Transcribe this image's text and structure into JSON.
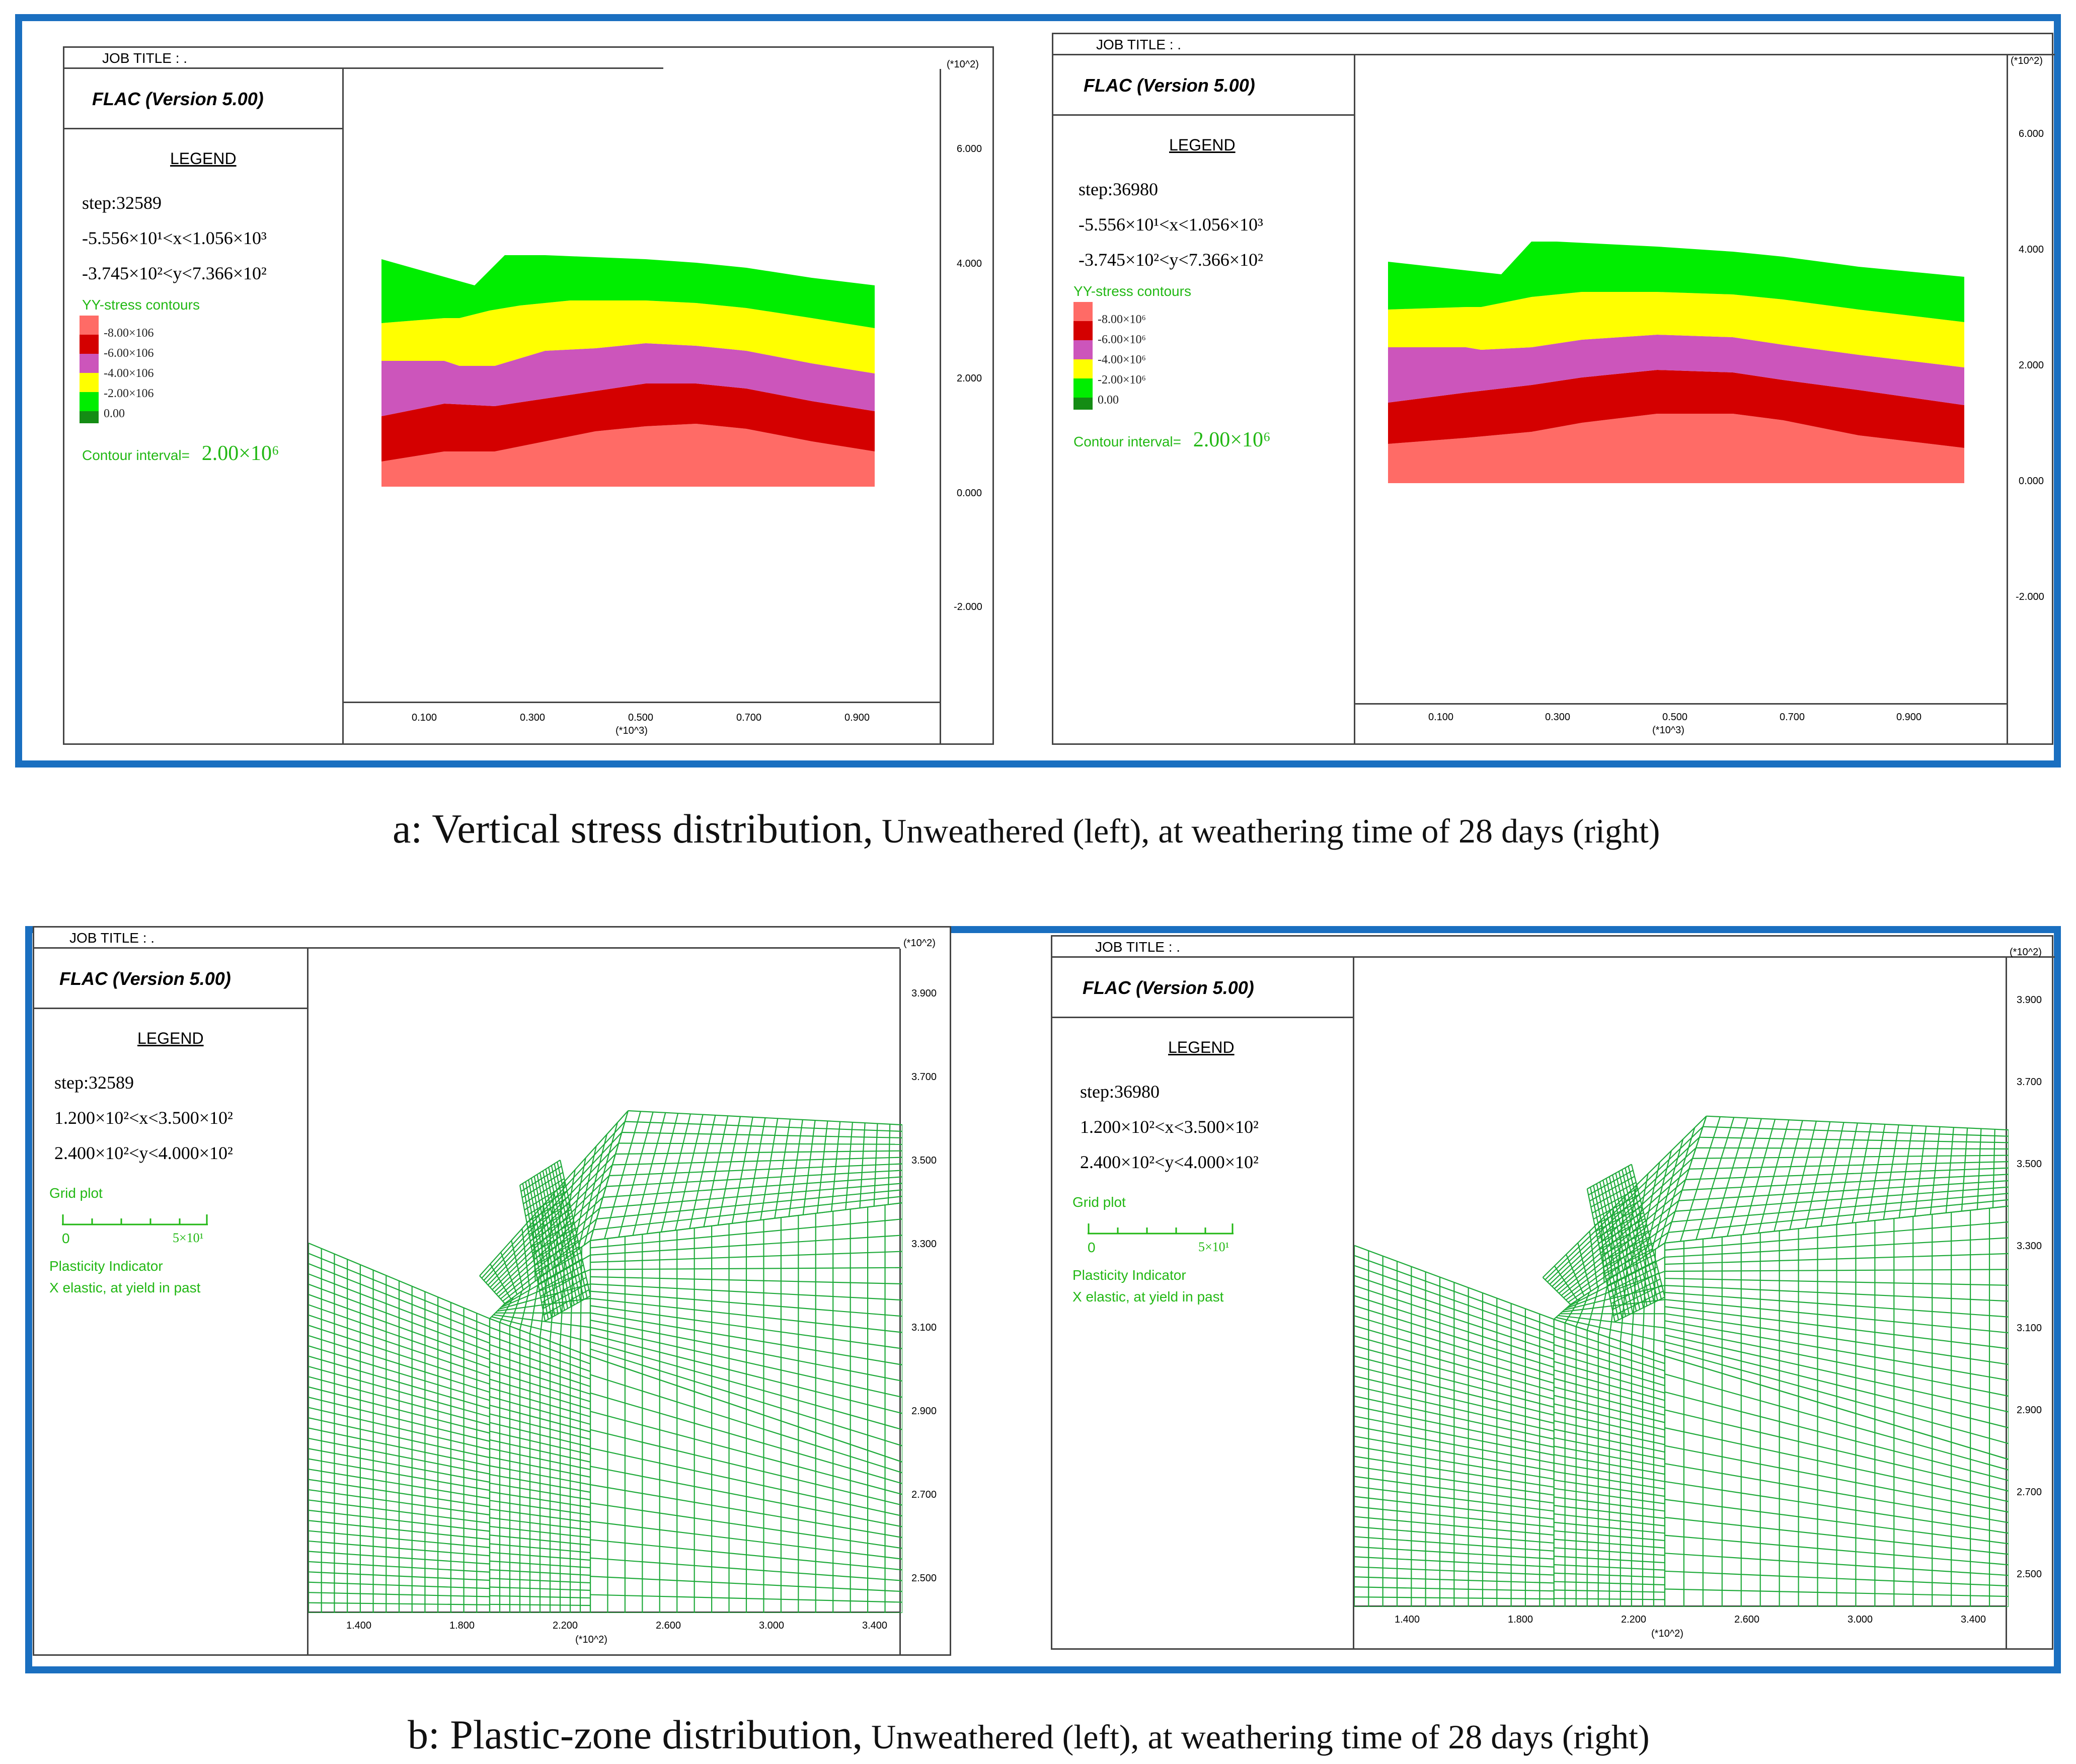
{
  "figure_a": {
    "caption_main": "a: Vertical stress distribution,",
    "caption_sub": " Unweathered (left), at weathering time of 28 days (right)",
    "panels": [
      {
        "job_title": "JOB TITLE : .",
        "program": "FLAC (Version 5.00)",
        "legend_title": "LEGEND",
        "step": "step:32589",
        "x_range": "-5.556×10¹<x<1.056×10³",
        "y_range": "-3.745×10²<y<7.366×10²",
        "contour_title": "YY-stress contours",
        "contour_levels": [
          "-8.00×106",
          "-6.00×106",
          "-4.00×106",
          "-2.00×106",
          "0.00"
        ],
        "contour_interval_label": "Contour interval=",
        "contour_interval_value": "2.00×10⁶",
        "y_exp": "(*10^2)",
        "y_ticks": [
          "6.000",
          "4.000",
          "2.000",
          "0.000",
          "-2.000"
        ],
        "x_ticks": [
          "0.100",
          "0.300",
          "0.500",
          "0.700",
          "0.900"
        ],
        "x_exp": "(*10^3)"
      },
      {
        "job_title": "JOB TITLE : .",
        "program": "FLAC (Version 5.00)",
        "legend_title": "LEGEND",
        "step": "step:36980",
        "x_range": "-5.556×10¹<x<1.056×10³",
        "y_range": "-3.745×10²<y<7.366×10²",
        "contour_title": "YY-stress contours",
        "contour_levels": [
          "-8.00×10⁶",
          "-6.00×10⁶",
          "-4.00×10⁶",
          "-2.00×10⁶",
          "0.00"
        ],
        "contour_interval_label": "Contour interval=",
        "contour_interval_value": "2.00×10⁶",
        "y_exp": "(*10^2)",
        "y_ticks": [
          "6.000",
          "4.000",
          "2.000",
          "0.000",
          "-2.000"
        ],
        "x_ticks": [
          "0.100",
          "0.300",
          "0.500",
          "0.700",
          "0.900"
        ],
        "x_exp": "(*10^3)"
      }
    ]
  },
  "figure_b": {
    "caption_main": "b: Plastic-zone distribution,",
    "caption_sub": " Unweathered (left), at weathering time of 28 days (right)",
    "panels": [
      {
        "job_title": "JOB TITLE : .",
        "program": "FLAC (Version 5.00)",
        "legend_title": "LEGEND",
        "step": "step:32589",
        "x_range": "1.200×10²<x<3.500×10²",
        "y_range": "2.400×10²<y<4.000×10²",
        "grid_plot": "Grid plot",
        "scale_zero": "0",
        "scale_end": "5×10¹",
        "plasticity_title": "Plasticity Indicator",
        "plasticity_desc": "X elastic, at yield in past",
        "y_exp": "(*10^2)",
        "y_ticks": [
          "3.900",
          "3.700",
          "3.500",
          "3.300",
          "3.100",
          "2.900",
          "2.700",
          "2.500"
        ],
        "x_ticks": [
          "1.400",
          "1.800",
          "2.200",
          "2.600",
          "3.000",
          "3.400"
        ],
        "x_exp": "(*10^2)"
      },
      {
        "job_title": "JOB TITLE : .",
        "program": "FLAC (Version 5.00)",
        "legend_title": "LEGEND",
        "step": "step:36980",
        "x_range": "1.200×10²<x<3.500×10²",
        "y_range": "2.400×10²<y<4.000×10²",
        "grid_plot": "Grid plot",
        "scale_zero": "0",
        "scale_end": "5×10¹",
        "plasticity_title": "Plasticity Indicator",
        "plasticity_desc": "X elastic, at yield in past",
        "y_exp": "(*10^2)",
        "y_ticks": [
          "3.900",
          "3.700",
          "3.500",
          "3.300",
          "3.100",
          "2.900",
          "2.700",
          "2.500"
        ],
        "x_ticks": [
          "1.400",
          "1.800",
          "2.200",
          "2.600",
          "3.000",
          "3.400"
        ],
        "x_exp": "(*10^2)"
      }
    ]
  },
  "colors": {
    "frame": "#1a6fc0",
    "band_salmon": "#ff6b66",
    "band_red": "#d40000",
    "band_magenta": "#cc55bb",
    "band_yellow": "#ffff00",
    "band_green": "#00ee00",
    "grid_green": "#1faa3a",
    "legend_green": "#22b814"
  }
}
